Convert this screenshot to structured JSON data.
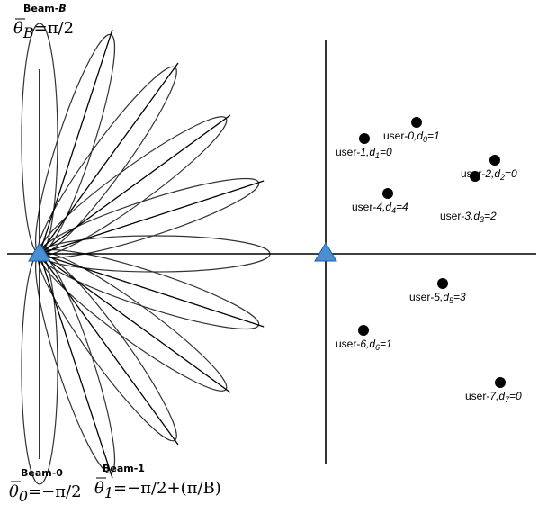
{
  "left_panel": {
    "beam_top_label": {
      "prefix": "Beam-",
      "var": "B"
    },
    "theta_top": {
      "symbol": "θ",
      "sub": "B",
      "rhs": "=π/2"
    },
    "beam0_label": "Beam-0",
    "theta_0": {
      "symbol": "θ",
      "sub": "0",
      "rhs": "=−π/2"
    },
    "beam1_label": "Beam-1",
    "theta_1": {
      "symbol": "θ",
      "sub": "1",
      "rhs": "=−π/2+(π/B)"
    },
    "beam_count_drawn": 11
  },
  "right_panel": {
    "users": [
      {
        "name": "user-0",
        "d_sub": "0",
        "d_val": "1"
      },
      {
        "name": "user-1",
        "d_sub": "1",
        "d_val": "0"
      },
      {
        "name": "user-2",
        "d_sub": "2",
        "d_val": "0"
      },
      {
        "name": "user-3",
        "d_sub": "3",
        "d_val": "2"
      },
      {
        "name": "user-4",
        "d_sub": "4",
        "d_val": "4"
      },
      {
        "name": "user-5",
        "d_sub": "5",
        "d_val": "3"
      },
      {
        "name": "user-6",
        "d_sub": "6",
        "d_val": "1"
      },
      {
        "name": "user-7",
        "d_sub": "7",
        "d_val": "0"
      }
    ]
  },
  "colors": {
    "base_station": "#4a8fd4",
    "base_station_edge": "#1f5e9e",
    "beam_stroke": "#333333",
    "axis": "#000000",
    "user_dot": "#000000"
  },
  "icons": {
    "base_station": "triangle-icon",
    "user": "filled-circle-icon"
  }
}
